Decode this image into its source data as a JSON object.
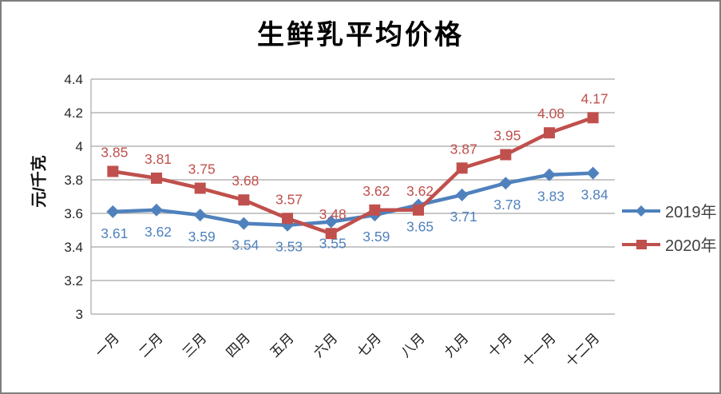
{
  "chart_data": {
    "type": "line",
    "title": "生鲜乳平均价格",
    "ylabel": "元/千克",
    "xlabel": "",
    "categories": [
      "一月",
      "二月",
      "三月",
      "四月",
      "五月",
      "六月",
      "七月",
      "八月",
      "九月",
      "十月",
      "十一月",
      "十二月"
    ],
    "series": [
      {
        "name": "2019年",
        "color": "#4F81BD",
        "marker": "diamond",
        "label_position": "below",
        "values": [
          3.61,
          3.62,
          3.59,
          3.54,
          3.53,
          3.55,
          3.59,
          3.65,
          3.71,
          3.78,
          3.83,
          3.84
        ]
      },
      {
        "name": "2020年",
        "color": "#C0504D",
        "marker": "square",
        "label_position": "above",
        "values": [
          3.85,
          3.81,
          3.75,
          3.68,
          3.57,
          3.48,
          3.62,
          3.62,
          3.87,
          3.95,
          4.08,
          4.17
        ]
      }
    ],
    "ylim": [
      3,
      4.4
    ],
    "yticks": [
      3,
      3.2,
      3.4,
      3.6,
      3.8,
      4,
      4.2,
      4.4
    ],
    "grid": true,
    "legend_position": "right",
    "colors": {
      "gridline": "#A6A6A6",
      "axis_text": "#262626",
      "month_text": "#1a1a1a",
      "frame_border": "#7f7f7f"
    }
  }
}
